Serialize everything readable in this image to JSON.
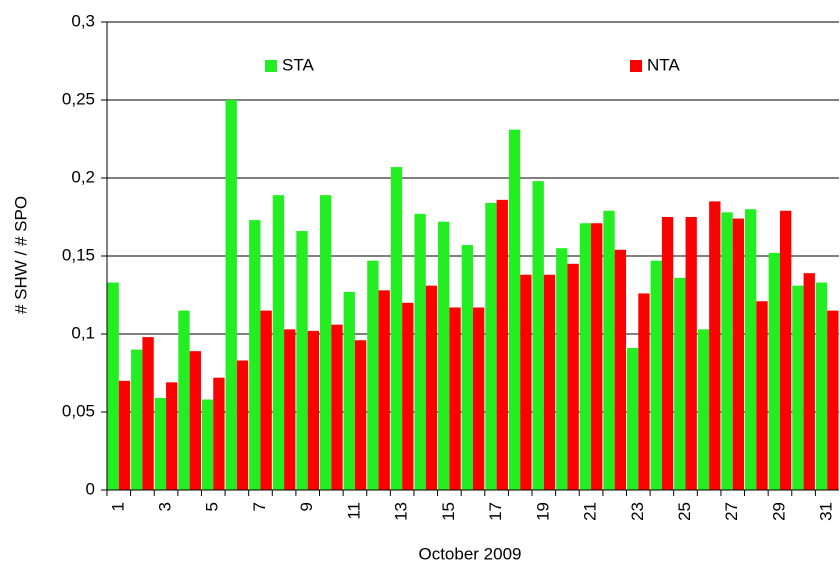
{
  "chart_data": {
    "type": "bar",
    "x_label": "October 2009",
    "y_label": "# SHW / # SPO",
    "categories": [
      "1",
      null,
      "3",
      null,
      "5",
      null,
      "7",
      null,
      "9",
      null,
      "11",
      null,
      "13",
      null,
      "15",
      null,
      "17",
      null,
      "19",
      null,
      "21",
      null,
      "23",
      null,
      "25",
      null,
      "27",
      null,
      "29",
      null,
      "31"
    ],
    "series": [
      {
        "name": "STA",
        "color": "#22ee22",
        "values": [
          0.133,
          0.09,
          0.059,
          0.115,
          0.058,
          0.25,
          0.173,
          0.189,
          0.166,
          0.189,
          0.127,
          0.147,
          0.207,
          0.177,
          0.172,
          0.157,
          0.184,
          0.231,
          0.198,
          0.155,
          0.171,
          0.179,
          0.091,
          0.147,
          0.136,
          0.103,
          0.178,
          0.18,
          0.152,
          0.131,
          0.133
        ]
      },
      {
        "name": "NTA",
        "color": "#ff0000",
        "values": [
          0.07,
          0.098,
          0.069,
          0.089,
          0.072,
          0.083,
          0.115,
          0.103,
          0.102,
          0.106,
          0.096,
          0.128,
          0.12,
          0.131,
          0.117,
          0.117,
          0.186,
          0.138,
          0.138,
          0.145,
          0.171,
          0.154,
          0.126,
          0.175,
          0.175,
          0.185,
          0.174,
          0.121,
          0.179,
          0.139,
          0.115
        ]
      }
    ],
    "ylim": [
      0,
      0.3
    ],
    "yticks": [
      0,
      {
        "value": 0.05,
        "label": "0,05"
      },
      {
        "value": 0.1,
        "label": "0,1"
      },
      {
        "value": 0.15,
        "label": "0,15"
      },
      {
        "value": 0.2,
        "label": "0,2"
      },
      {
        "value": 0.25,
        "label": "0,25"
      },
      {
        "value": 0.3,
        "label": "0,3"
      }
    ],
    "grid": true
  }
}
